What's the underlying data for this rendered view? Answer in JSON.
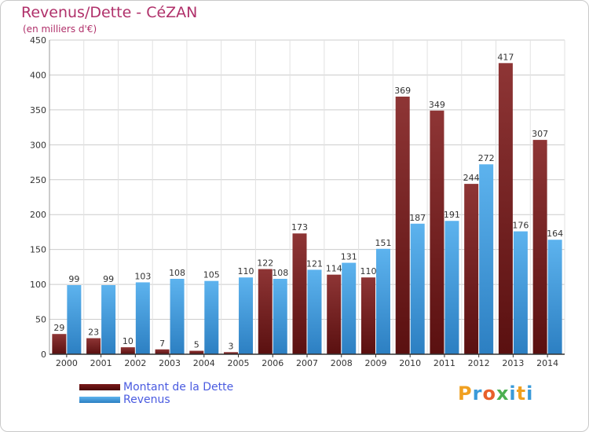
{
  "title": "Revenus/Dette - CéZAN",
  "subtitle": "(en milliers d'€)",
  "legend": {
    "dette_label": "Montant de la Dette",
    "revenus_label": "Revenus"
  },
  "brand": {
    "letters": [
      "P",
      "r",
      "o",
      "x",
      "i",
      "t",
      "i"
    ],
    "colors": [
      "#f0a020",
      "#3a9ad9",
      "#e8602c",
      "#4caf50",
      "#3a9ad9",
      "#f0a020",
      "#3a9ad9"
    ]
  },
  "colors": {
    "dette": "#8b2a2a",
    "revenus": "#4ea6e6",
    "text": "#333333",
    "grid": "#cccccc"
  },
  "chart_data": {
    "type": "bar",
    "title": "Revenus/Dette - CéZAN",
    "subtitle": "(en milliers d'€)",
    "categories": [
      "2000",
      "2001",
      "2002",
      "2003",
      "2004",
      "2005",
      "2006",
      "2007",
      "2008",
      "2009",
      "2010",
      "2011",
      "2012",
      "2013",
      "2014"
    ],
    "series": [
      {
        "name": "Montant de la Dette",
        "values": [
          29,
          23,
          10,
          7,
          5,
          3,
          122,
          173,
          114,
          110,
          369,
          349,
          244,
          417,
          307
        ]
      },
      {
        "name": "Revenus",
        "values": [
          99,
          99,
          103,
          108,
          105,
          110,
          108,
          121,
          131,
          151,
          187,
          191,
          272,
          176,
          164
        ]
      }
    ],
    "ylim": [
      0,
      450
    ],
    "yticks": [
      0,
      50,
      100,
      150,
      200,
      250,
      300,
      350,
      400,
      450
    ],
    "grid": true,
    "legend_position": "bottom-left"
  }
}
